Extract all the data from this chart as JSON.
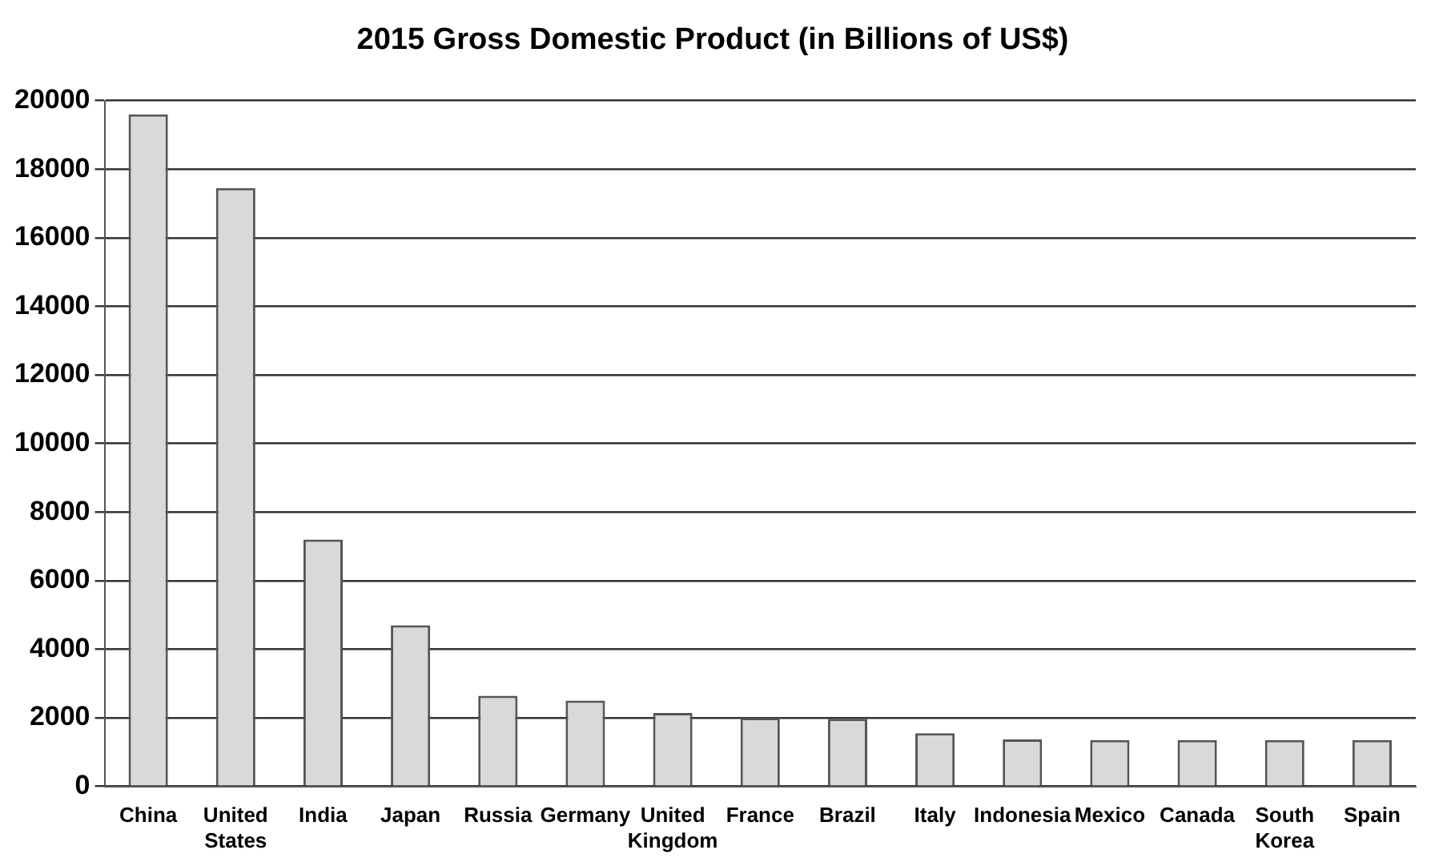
{
  "chart_data": {
    "type": "bar",
    "title": "2015 Gross Domestic Product (in Billions of US$)",
    "categories": [
      "China",
      "United States",
      "India",
      "Japan",
      "Russia",
      "Germany",
      "United Kingdom",
      "France",
      "Brazil",
      "Italy",
      "Indonesia",
      "Mexico",
      "Canada",
      "South Korea",
      "Spain"
    ],
    "values": [
      19600,
      17450,
      7200,
      4700,
      2640,
      2500,
      2140,
      2000,
      1970,
      1550,
      1370,
      1350,
      1350,
      1350,
      1350
    ],
    "color": "#d9d9d9",
    "ylim": [
      0,
      20000
    ],
    "yticks": [
      0,
      2000,
      4000,
      6000,
      8000,
      10000,
      12000,
      14000,
      16000,
      18000,
      20000
    ],
    "grid": "y"
  }
}
